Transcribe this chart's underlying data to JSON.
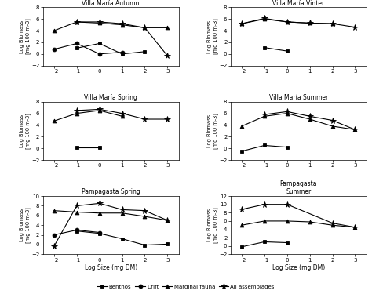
{
  "x": [
    -2,
    -1,
    0,
    1,
    2,
    3
  ],
  "subplots": [
    {
      "title": "Villa María Autumn",
      "ylim": [
        -2,
        8
      ],
      "yticks": [
        -2,
        0,
        2,
        4,
        6,
        8
      ],
      "benthos": [
        null,
        1.0,
        1.8,
        0.0,
        0.4,
        null
      ],
      "drift": [
        0.8,
        1.8,
        0.0,
        0.3,
        null,
        null
      ],
      "marginal": [
        4.0,
        5.5,
        5.3,
        5.0,
        4.5,
        4.5
      ],
      "all_assem": [
        null,
        5.5,
        5.5,
        5.2,
        4.5,
        -0.3
      ]
    },
    {
      "title": "Villa María Vinter",
      "ylim": [
        -2,
        8
      ],
      "yticks": [
        -2,
        0,
        2,
        4,
        6,
        8
      ],
      "benthos": [
        null,
        1.1,
        0.5,
        null,
        null,
        null
      ],
      "drift": [
        null,
        null,
        null,
        null,
        null,
        null
      ],
      "marginal": [
        5.2,
        6.0,
        5.5,
        5.3,
        5.2,
        null
      ],
      "all_assem": [
        5.2,
        6.1,
        5.5,
        5.3,
        5.2,
        4.6
      ]
    },
    {
      "title": "Villa María Spring",
      "ylim": [
        -2,
        8
      ],
      "yticks": [
        -2,
        0,
        2,
        4,
        6,
        8
      ],
      "benthos": [
        null,
        0.1,
        0.1,
        null,
        null,
        null
      ],
      "drift": [
        null,
        null,
        null,
        null,
        null,
        null
      ],
      "marginal": [
        4.7,
        6.0,
        6.5,
        5.5,
        null,
        null
      ],
      "all_assem": [
        null,
        6.5,
        6.7,
        6.0,
        5.0,
        5.0
      ]
    },
    {
      "title": "Villa María Summer",
      "ylim": [
        -2,
        8
      ],
      "yticks": [
        -2,
        0,
        2,
        4,
        6,
        8
      ],
      "benthos": [
        -0.5,
        0.5,
        0.2,
        null,
        null,
        null
      ],
      "drift": [
        null,
        null,
        null,
        null,
        null,
        null
      ],
      "marginal": [
        3.8,
        5.5,
        6.0,
        5.0,
        3.8,
        3.2
      ],
      "all_assem": [
        null,
        5.8,
        6.3,
        5.5,
        4.8,
        3.2
      ]
    },
    {
      "title": "Pampagasta Spring",
      "ylim": [
        -2,
        10
      ],
      "yticks": [
        -2,
        0,
        2,
        4,
        6,
        8,
        10
      ],
      "benthos": [
        null,
        2.8,
        2.3,
        1.2,
        -0.1,
        0.1
      ],
      "drift": [
        2.0,
        3.0,
        2.5,
        null,
        null,
        null
      ],
      "marginal": [
        7.0,
        6.7,
        6.5,
        6.5,
        5.8,
        5.0
      ],
      "all_assem": [
        -0.3,
        8.0,
        8.5,
        7.2,
        7.0,
        5.0
      ]
    },
    {
      "title": "Pampagasta\nSummer",
      "ylim": [
        -2,
        12
      ],
      "yticks": [
        -2,
        0,
        2,
        4,
        6,
        8,
        10,
        12
      ],
      "benthos": [
        -0.2,
        1.0,
        0.8,
        null,
        null,
        null
      ],
      "drift": [
        null,
        null,
        null,
        null,
        null,
        null
      ],
      "marginal": [
        5.0,
        6.0,
        6.0,
        5.8,
        5.0,
        4.5
      ],
      "all_assem": [
        8.8,
        10.0,
        10.0,
        null,
        5.5,
        4.5
      ]
    }
  ],
  "xlabel": "Log Size (mg DM)",
  "ylabel": "Log Biomass\n[mg 100 m-3]",
  "legend_labels": [
    "Benthos",
    "Drift",
    "Marginal fauna",
    "All assemblages"
  ],
  "line_styles": [
    {
      "marker": "s",
      "linestyle": "-",
      "color": "black",
      "markersize": 3.5,
      "mfc": "black"
    },
    {
      "marker": "o",
      "linestyle": "-",
      "color": "black",
      "markersize": 3.5,
      "mfc": "black"
    },
    {
      "marker": "^",
      "linestyle": "-",
      "color": "black",
      "markersize": 3.5,
      "mfc": "black"
    },
    {
      "marker": "*",
      "linestyle": "-",
      "color": "black",
      "markersize": 5.5,
      "mfc": "black"
    }
  ]
}
